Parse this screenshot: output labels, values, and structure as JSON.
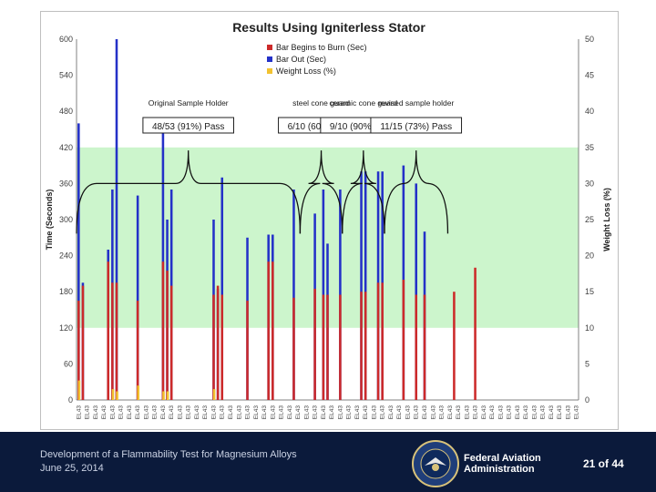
{
  "footer": {
    "title_line": "Development of a Flammability Test for Magnesium Alloys",
    "date_line": "June 25, 2014",
    "agency_line1": "Federal Aviation",
    "agency_line2": "Administration",
    "page": "21 of 44"
  },
  "colors": {
    "burn": "#cc2a2a",
    "out": "#2431c8",
    "weight": "#f2c230",
    "pass_band": "#ccf5cc",
    "footer_bg": "#0b1a3b"
  },
  "chart_data": {
    "type": "bar",
    "title": "Results Using Igniterless Stator",
    "ylabel": "Time (Seconds)",
    "y2label": "Weight Loss (%)",
    "ylim": [
      0,
      600
    ],
    "y2lim": [
      0,
      50
    ],
    "yticks": [
      0,
      60,
      120,
      180,
      240,
      300,
      360,
      420,
      480,
      540,
      600
    ],
    "y2ticks": [
      0,
      5,
      10,
      15,
      20,
      25,
      30,
      35,
      40,
      45,
      50
    ],
    "pass_band": [
      120,
      420
    ],
    "category_label": "EL43",
    "legend": [
      "Bar Begins to Burn (Sec)",
      "Bar Out (Sec)",
      "Weight Loss (%)"
    ],
    "legend_position": "top",
    "grid": false,
    "group_labels": [
      "Original Sample Holder",
      "steel cone guard",
      "ceramic cone guard",
      "revised sample holder"
    ],
    "pass_labels": [
      "48/53 (91%) Pass",
      "6/10 (60%) Pass",
      "9/10 (90%) Pass",
      "11/15 (73%) Pass"
    ],
    "group_ranges": [
      [
        0,
        52
      ],
      [
        53,
        62
      ],
      [
        63,
        72
      ],
      [
        73,
        87
      ]
    ],
    "series": [
      {
        "name": "Bar Begins to Burn (Sec)",
        "values": [
          165,
          190,
          0,
          0,
          0,
          0,
          0,
          230,
          195,
          195,
          0,
          0,
          0,
          0,
          165,
          0,
          0,
          0,
          0,
          0,
          230,
          215,
          190,
          0,
          0,
          0,
          0,
          0,
          0,
          0,
          0,
          0,
          175,
          190,
          175,
          0,
          0,
          0,
          0,
          0,
          165,
          0,
          0,
          0,
          0,
          230,
          230,
          0,
          0,
          0,
          0,
          170,
          0,
          0,
          0,
          0,
          185,
          0,
          175,
          175,
          0,
          0,
          175,
          0,
          0,
          0,
          0,
          180,
          180,
          0,
          0,
          195,
          195,
          0,
          0,
          0,
          0,
          200,
          0,
          0,
          175,
          0,
          175,
          0,
          0,
          0,
          0,
          0,
          0,
          180,
          0,
          0,
          0,
          0,
          220,
          0,
          0,
          0,
          0,
          0,
          0,
          0,
          0,
          0,
          0,
          0,
          0,
          0,
          0,
          0,
          0,
          0,
          0,
          0,
          0,
          0,
          0,
          0,
          0
        ]
      },
      {
        "name": "Bar Out (Sec)",
        "values": [
          460,
          195,
          0,
          0,
          0,
          0,
          0,
          250,
          350,
          600,
          0,
          0,
          0,
          0,
          340,
          0,
          0,
          0,
          0,
          0,
          445,
          300,
          350,
          0,
          0,
          0,
          0,
          0,
          0,
          0,
          0,
          0,
          300,
          185,
          370,
          0,
          0,
          0,
          0,
          0,
          270,
          0,
          0,
          0,
          0,
          275,
          275,
          0,
          0,
          0,
          0,
          350,
          0,
          0,
          0,
          0,
          310,
          0,
          350,
          260,
          0,
          0,
          350,
          0,
          0,
          0,
          0,
          380,
          380,
          0,
          0,
          380,
          380,
          0,
          0,
          0,
          0,
          390,
          0,
          0,
          360,
          0,
          280,
          0,
          0,
          0,
          0,
          0,
          0,
          0,
          0,
          0,
          0,
          0,
          0,
          0,
          0,
          0,
          0,
          0,
          0,
          0,
          0,
          0,
          0,
          0,
          0,
          0,
          0,
          0,
          0,
          0,
          0,
          0,
          0,
          0,
          0,
          0,
          0
        ]
      },
      {
        "name": "Weight Loss (%)",
        "values": [
          2.7,
          0,
          0,
          0,
          0,
          0,
          0,
          0,
          1.5,
          1.2,
          0,
          0,
          0,
          0,
          2,
          0,
          0,
          0,
          0,
          0,
          1.2,
          1.2,
          0,
          0,
          0,
          0,
          0,
          0,
          0,
          0,
          0,
          0,
          1.5,
          0,
          0,
          0,
          0,
          0,
          0,
          0,
          0,
          0,
          0,
          0,
          0,
          0,
          0,
          0,
          0,
          0,
          0,
          0,
          0,
          0,
          0,
          0,
          0,
          0,
          0,
          0,
          0,
          0,
          0,
          0,
          0,
          0,
          0,
          0,
          0,
          0,
          0,
          0,
          0,
          0,
          0,
          0,
          0,
          0,
          0,
          0,
          0,
          0,
          0,
          0,
          0,
          0,
          0,
          0,
          0,
          0,
          0,
          0,
          0,
          0,
          0,
          0,
          0,
          0,
          0,
          0,
          0,
          0,
          0,
          0,
          0,
          0,
          0,
          0,
          0,
          0,
          0,
          0,
          0,
          0,
          0,
          0
        ]
      }
    ]
  }
}
